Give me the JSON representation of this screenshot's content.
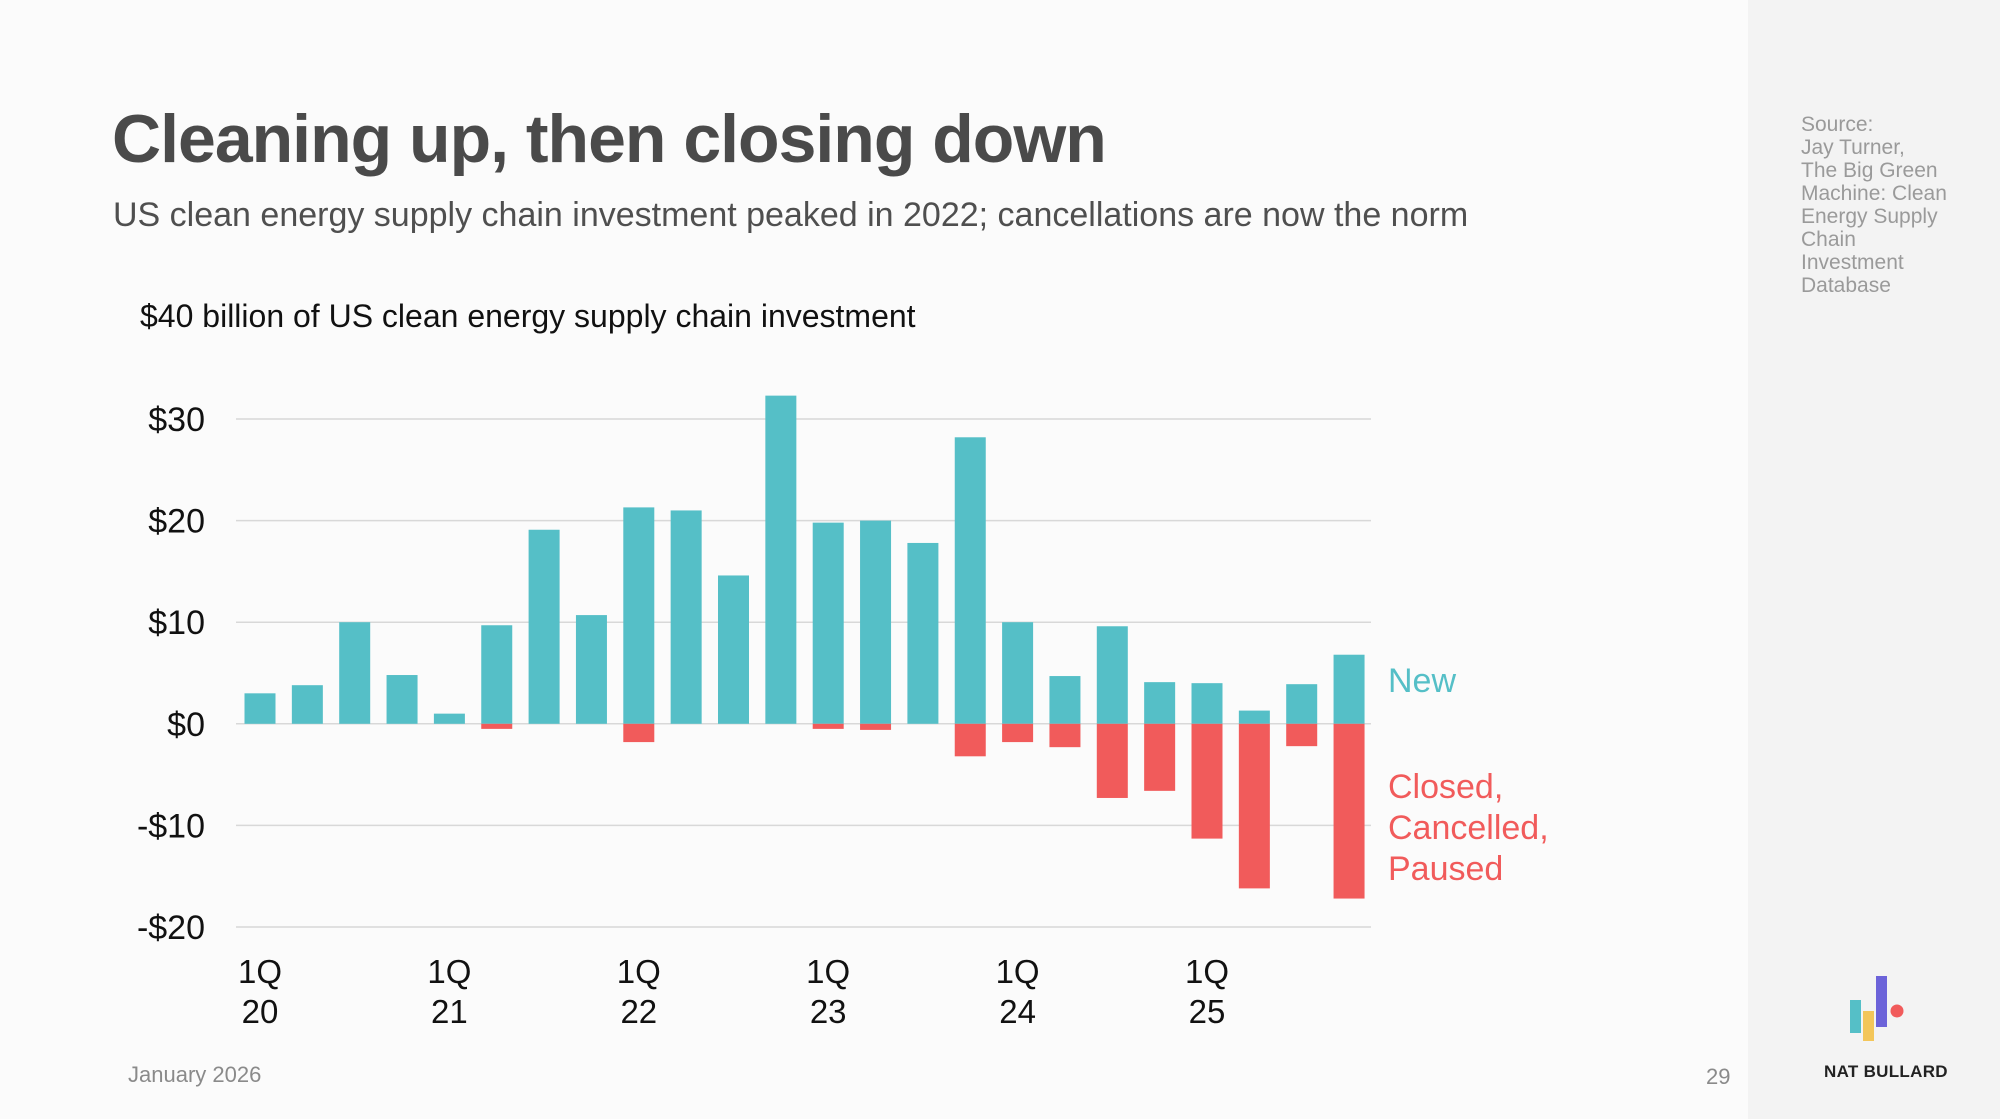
{
  "header": {
    "title": "Cleaning up, then closing down",
    "subtitle": "US clean energy supply chain investment peaked in 2022; cancellations are now the norm"
  },
  "source_note": "Source:\nJay Turner,\nThe Big Green\nMachine: Clean\nEnergy Supply\nChain\nInvestment\nDatabase",
  "footer": {
    "date": "January 2026",
    "page": "29",
    "brand": "NAT BULLARD"
  },
  "chart_data": {
    "type": "bar",
    "title": "$40 billion of US clean energy supply chain investment",
    "ylim": [
      -20,
      30
    ],
    "yticks": [
      30,
      20,
      10,
      0,
      -10,
      -20
    ],
    "ytick_labels": [
      "$30",
      "$20",
      "$10",
      "$0",
      "-$10",
      "-$20"
    ],
    "grid": true,
    "categories": [
      "1Q20",
      "2Q20",
      "3Q20",
      "4Q20",
      "1Q21",
      "2Q21",
      "3Q21",
      "4Q21",
      "1Q22",
      "2Q22",
      "3Q22",
      "4Q22",
      "1Q23",
      "2Q23",
      "3Q23",
      "4Q23",
      "1Q24",
      "2Q24",
      "3Q24",
      "4Q24",
      "1Q25",
      "2Q25",
      "3Q25",
      "4Q25"
    ],
    "xtick_labels": [
      {
        "index": 0,
        "line1": "1Q",
        "line2": "20"
      },
      {
        "index": 4,
        "line1": "1Q",
        "line2": "21"
      },
      {
        "index": 8,
        "line1": "1Q",
        "line2": "22"
      },
      {
        "index": 12,
        "line1": "1Q",
        "line2": "23"
      },
      {
        "index": 16,
        "line1": "1Q",
        "line2": "24"
      },
      {
        "index": 20,
        "line1": "1Q",
        "line2": "25"
      }
    ],
    "series": [
      {
        "name": "New",
        "color": "#55bfc7",
        "values": [
          3.0,
          3.8,
          10.0,
          4.8,
          1.0,
          9.7,
          19.1,
          10.7,
          21.3,
          21.0,
          14.6,
          32.3,
          19.8,
          20.0,
          17.8,
          28.2,
          10.0,
          4.7,
          9.6,
          4.1,
          4.0,
          1.3,
          3.9,
          6.8
        ]
      },
      {
        "name": "Closed, Cancelled, Paused",
        "name_lines": [
          "Closed,",
          "Cancelled,",
          "Paused"
        ],
        "color": "#f15b5b",
        "values": [
          0,
          0,
          0,
          0,
          0,
          -0.5,
          0,
          0,
          -1.8,
          0,
          0,
          0,
          -0.5,
          -0.6,
          0,
          -3.2,
          -1.8,
          -2.3,
          -7.3,
          -6.6,
          -11.3,
          -16.2,
          -2.2,
          -17.2
        ]
      }
    ]
  }
}
